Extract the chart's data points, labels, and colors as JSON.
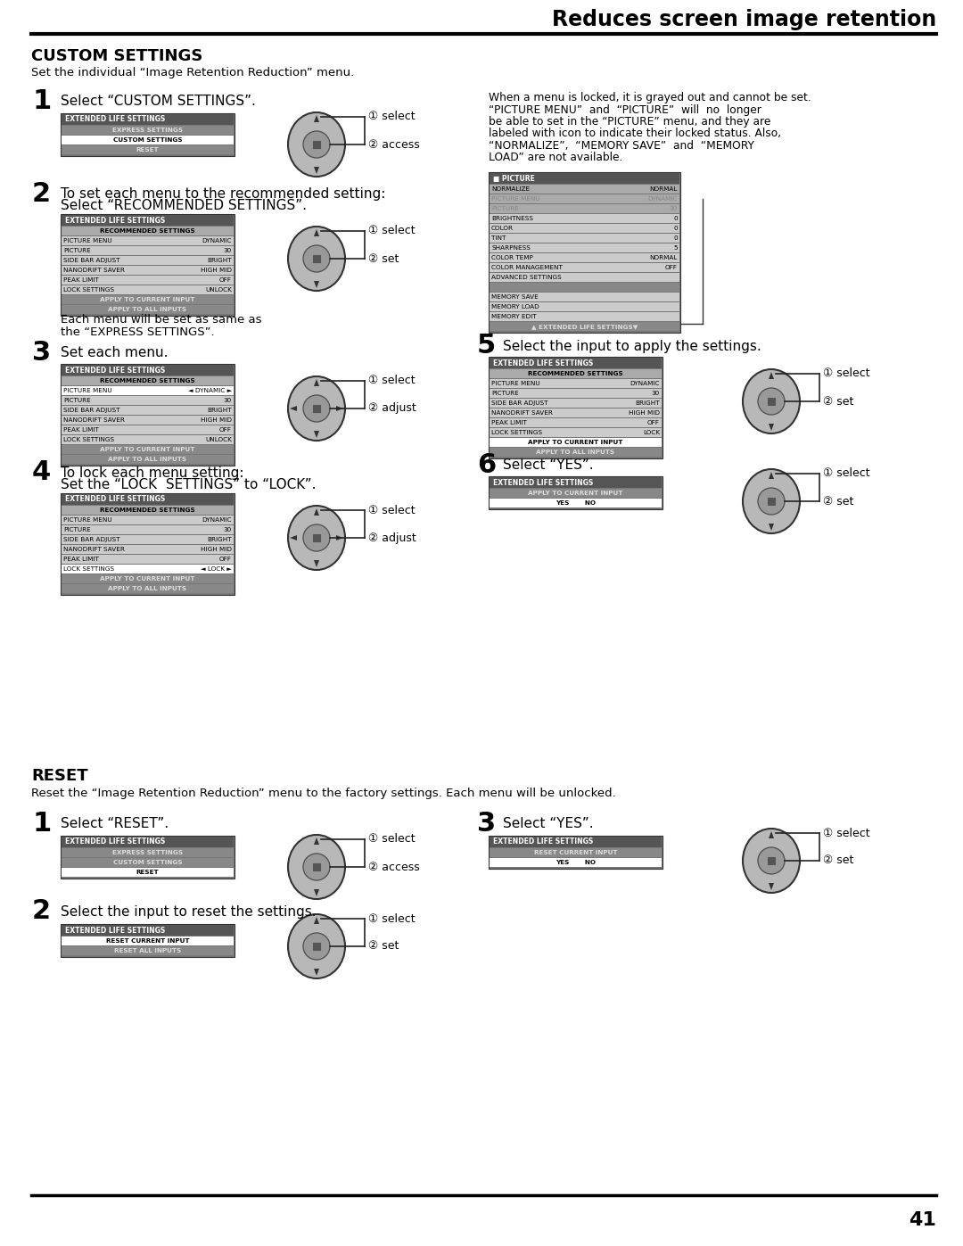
{
  "title": "Reduces screen image retention",
  "page_number": "41",
  "bg": "#ffffff",
  "section1_title": "CUSTOM SETTINGS",
  "section1_desc": "Set the individual “Image Retention Reduction” menu.",
  "section2_title": "RESET",
  "section2_desc": "Reset the “Image Retention Reduction” menu to the factory settings. Each menu will be unlocked.",
  "right_text_line1": "When a menu is locked, it is grayed out and cannot be set.",
  "right_text_line2": "“PICTURE MENU”  and  “PICTURE”  will  no  longer",
  "right_text_line3": "be able to set in the “PICTURE” menu, and they are",
  "right_text_line4": "labeled with icon to indicate their locked status. Also,",
  "right_text_line5": "“NORMALIZE”,  “MEMORY SAVE”  and  “MEMORY",
  "right_text_line6": "LOAD” are not available."
}
